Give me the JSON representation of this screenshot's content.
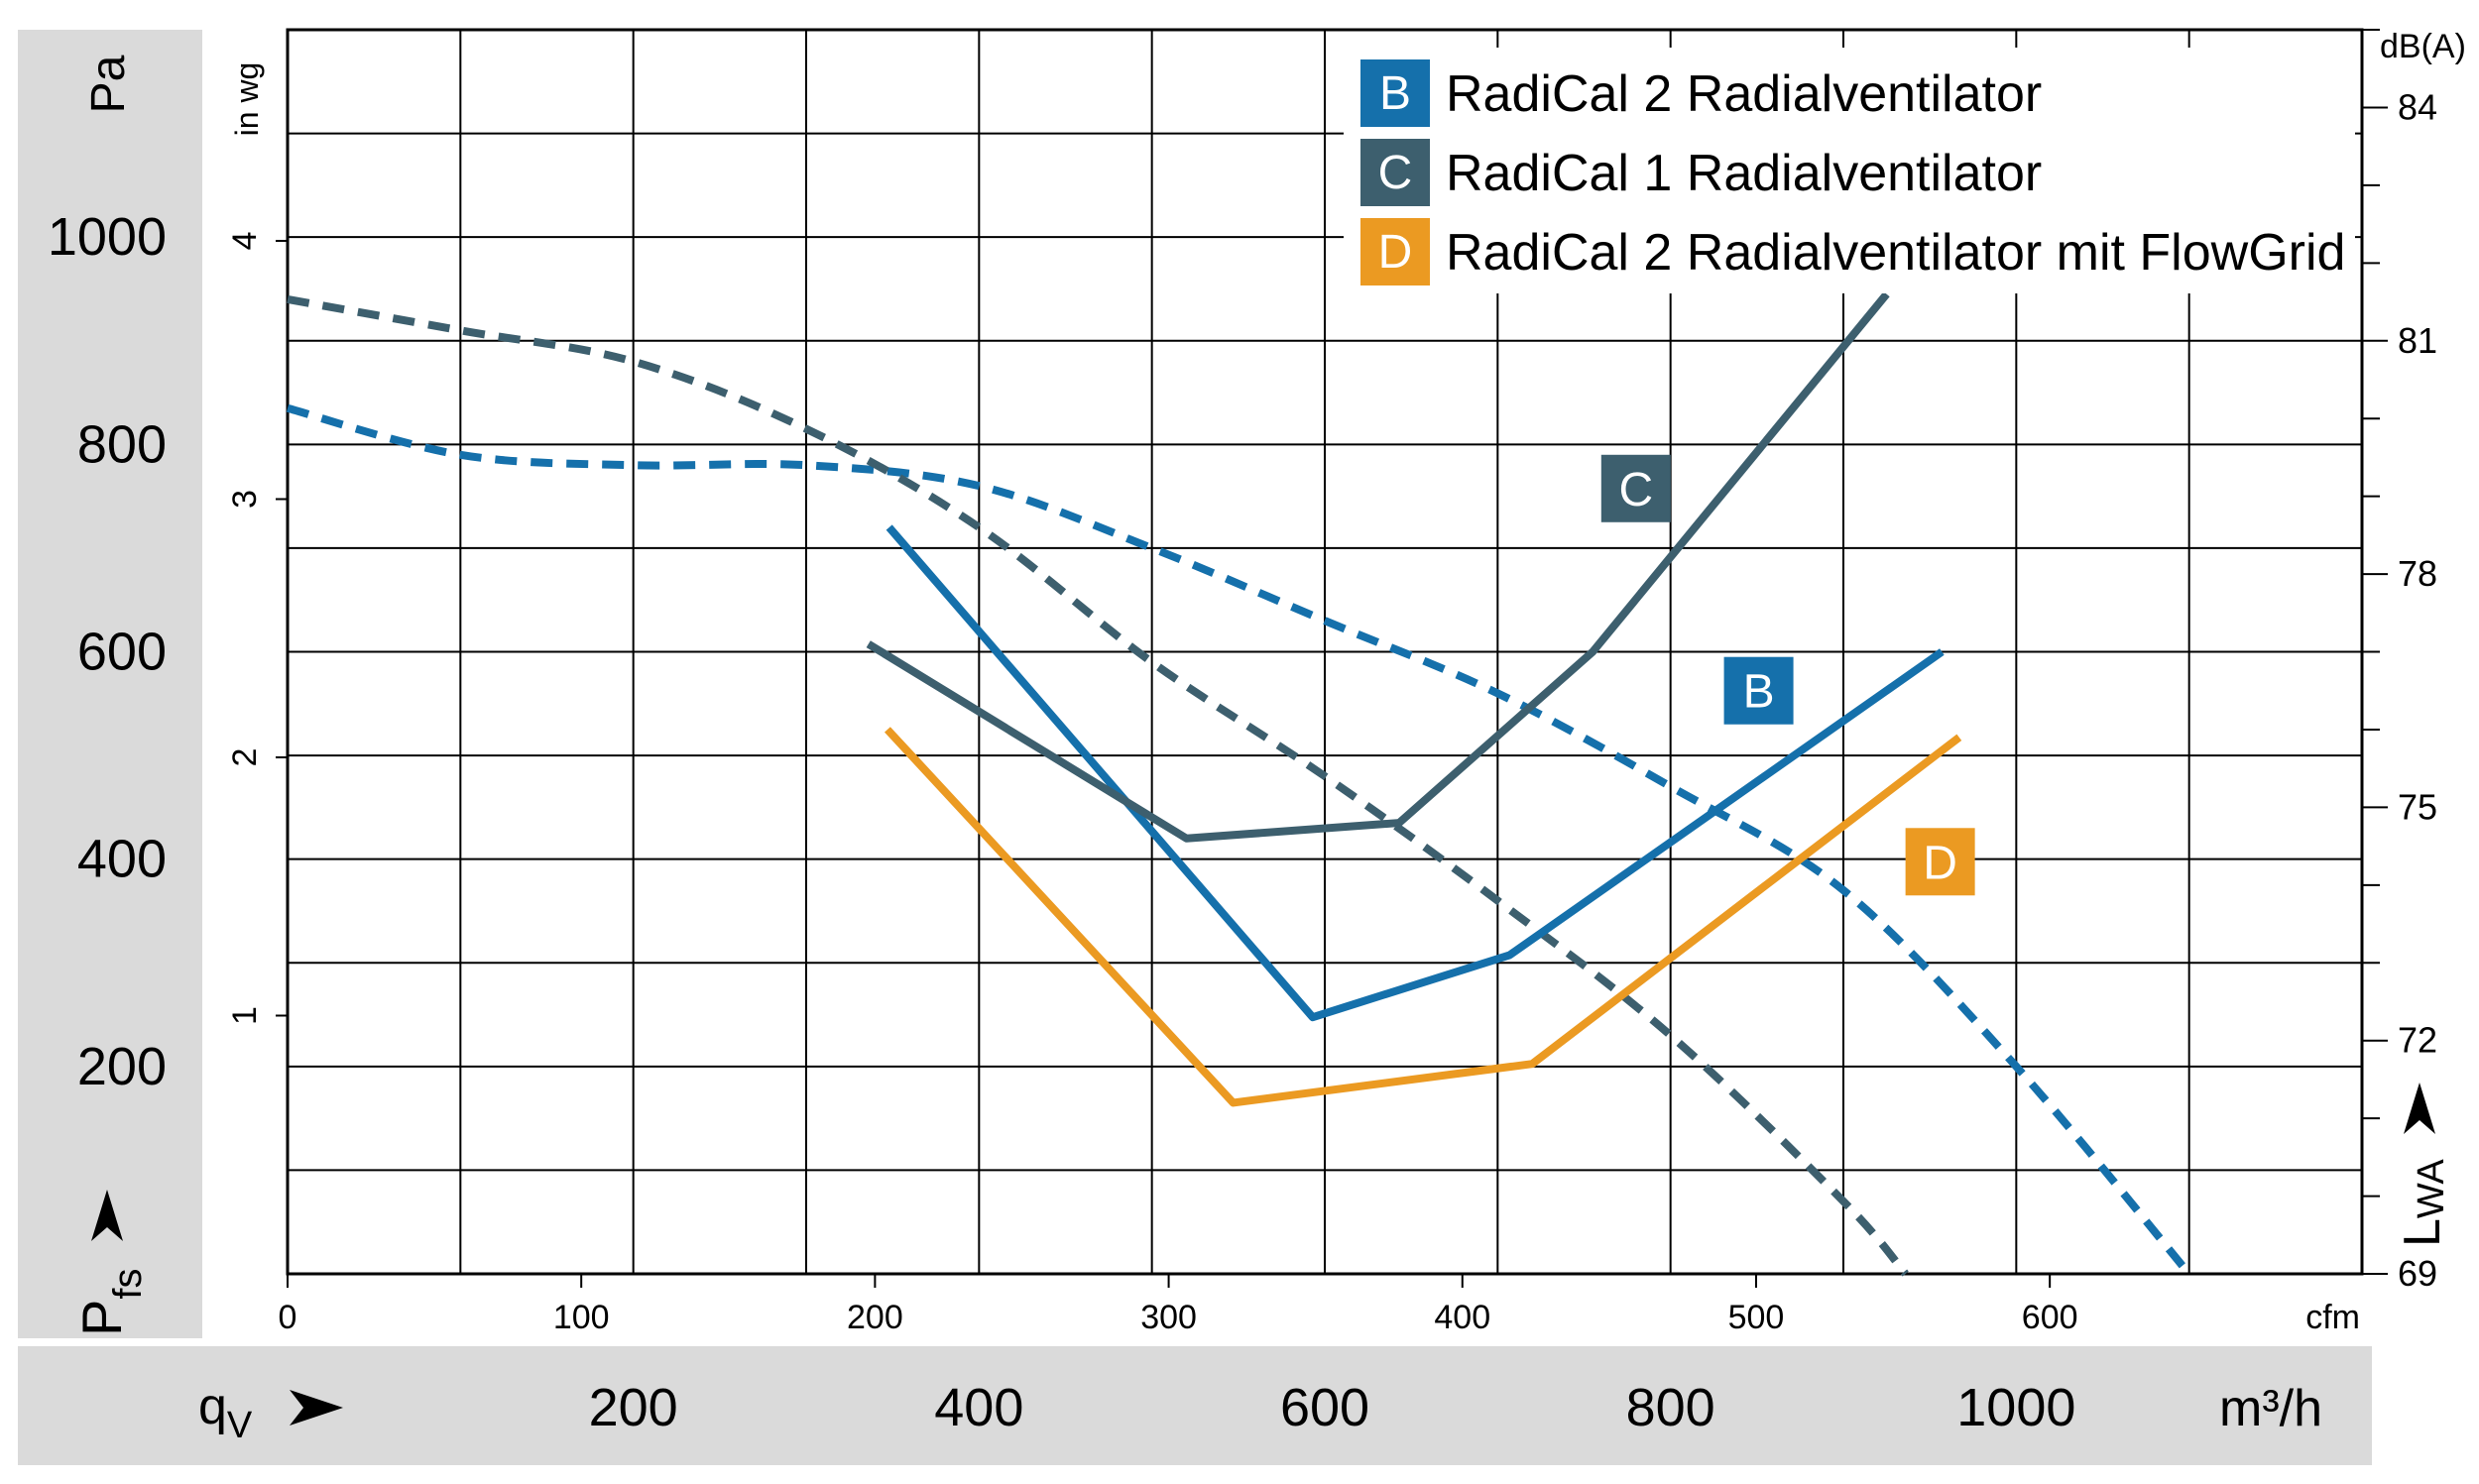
{
  "chart_data": {
    "type": "line",
    "units": {
      "left_primary": "Pa",
      "left_secondary": "in wg",
      "right": "dB(A)",
      "x_primary": "m³/h",
      "x_secondary": "cfm"
    },
    "axis_labels": {
      "pressure_main": "P",
      "pressure_sub": "fs",
      "flow_main": "q",
      "flow_sub": "V",
      "sound_main": "L",
      "sound_sub": "WA"
    },
    "x_m3h": {
      "range": [
        0,
        1200
      ],
      "ticks": [
        "200",
        "400",
        "600",
        "800",
        "1000"
      ],
      "tick_values": [
        200,
        400,
        600,
        800,
        1000
      ]
    },
    "x_cfm": {
      "ticks": [
        "0",
        "100",
        "200",
        "300",
        "400",
        "500",
        "600"
      ],
      "tick_values": [
        0,
        100,
        200,
        300,
        400,
        500,
        600
      ]
    },
    "y_pa": {
      "range": [
        0,
        1200
      ],
      "ticks": [
        "200",
        "400",
        "600",
        "800",
        "1000"
      ],
      "tick_values": [
        200,
        400,
        600,
        800,
        1000
      ]
    },
    "y_inwg": {
      "ticks": [
        "1",
        "2",
        "3",
        "4"
      ],
      "tick_values": [
        1,
        2,
        3,
        4
      ]
    },
    "y_dba": {
      "range": [
        69,
        85
      ],
      "ticks": [
        "69",
        "72",
        "75",
        "78",
        "81",
        "84"
      ],
      "tick_values": [
        69,
        72,
        75,
        78,
        81,
        84
      ]
    },
    "grid": true,
    "legend": {
      "position": "top-right",
      "entries": [
        {
          "key": "B",
          "label": "RadiCal 2 Radialventilator",
          "color": "#1570ab"
        },
        {
          "key": "C",
          "label": "RadiCal 1 Radialventilator",
          "color": "#3d5f6e"
        },
        {
          "key": "D",
          "label": "RadiCal 2 Radialventilator mit FlowGrid",
          "color": "#eb9a22"
        }
      ]
    },
    "series": [
      {
        "name": "B",
        "kind": "pressure",
        "axis": "Pa",
        "style": "dashed",
        "color": "#1570ab",
        "x": [
          0,
          100,
          200,
          300,
          400,
          500,
          600,
          700,
          800,
          900,
          1000,
          1100
        ],
        "y": [
          835,
          790,
          780,
          780,
          760,
          700,
          630,
          560,
          470,
          370,
          200,
          0
        ]
      },
      {
        "name": "C",
        "kind": "pressure",
        "axis": "Pa",
        "style": "dashed",
        "color": "#3d5f6e",
        "x": [
          0,
          100,
          200,
          300,
          400,
          500,
          600,
          700,
          800,
          900,
          936
        ],
        "y": [
          940,
          910,
          880,
          815,
          720,
          590,
          480,
          360,
          230,
          70,
          0
        ]
      },
      {
        "name": "B",
        "kind": "sound",
        "axis": "dB(A)",
        "style": "solid",
        "color": "#1570ab",
        "x": [
          348,
          593,
          707,
          957
        ],
        "y": [
          78.6,
          72.3,
          73.1,
          77.0
        ]
      },
      {
        "name": "C",
        "kind": "sound",
        "axis": "dB(A)",
        "style": "solid",
        "color": "#3d5f6e",
        "x": [
          336,
          520,
          643,
          755,
          925
        ],
        "y": [
          77.1,
          74.6,
          74.8,
          77.0,
          81.6
        ]
      },
      {
        "name": "D",
        "kind": "sound",
        "axis": "dB(A)",
        "style": "solid",
        "color": "#eb9a22",
        "x": [
          347,
          547,
          720,
          967
        ],
        "y": [
          76.0,
          71.2,
          71.7,
          75.9
        ]
      }
    ],
    "curve_labels": [
      {
        "text": "C",
        "color": "#3d5f6e",
        "x": 780,
        "y": 79.1,
        "axis": "dB(A)"
      },
      {
        "text": "B",
        "color": "#1570ab",
        "x": 851,
        "y": 76.5,
        "axis": "dB(A)"
      },
      {
        "text": "D",
        "color": "#eb9a22",
        "x": 956,
        "y": 74.3,
        "axis": "dB(A)"
      }
    ]
  }
}
